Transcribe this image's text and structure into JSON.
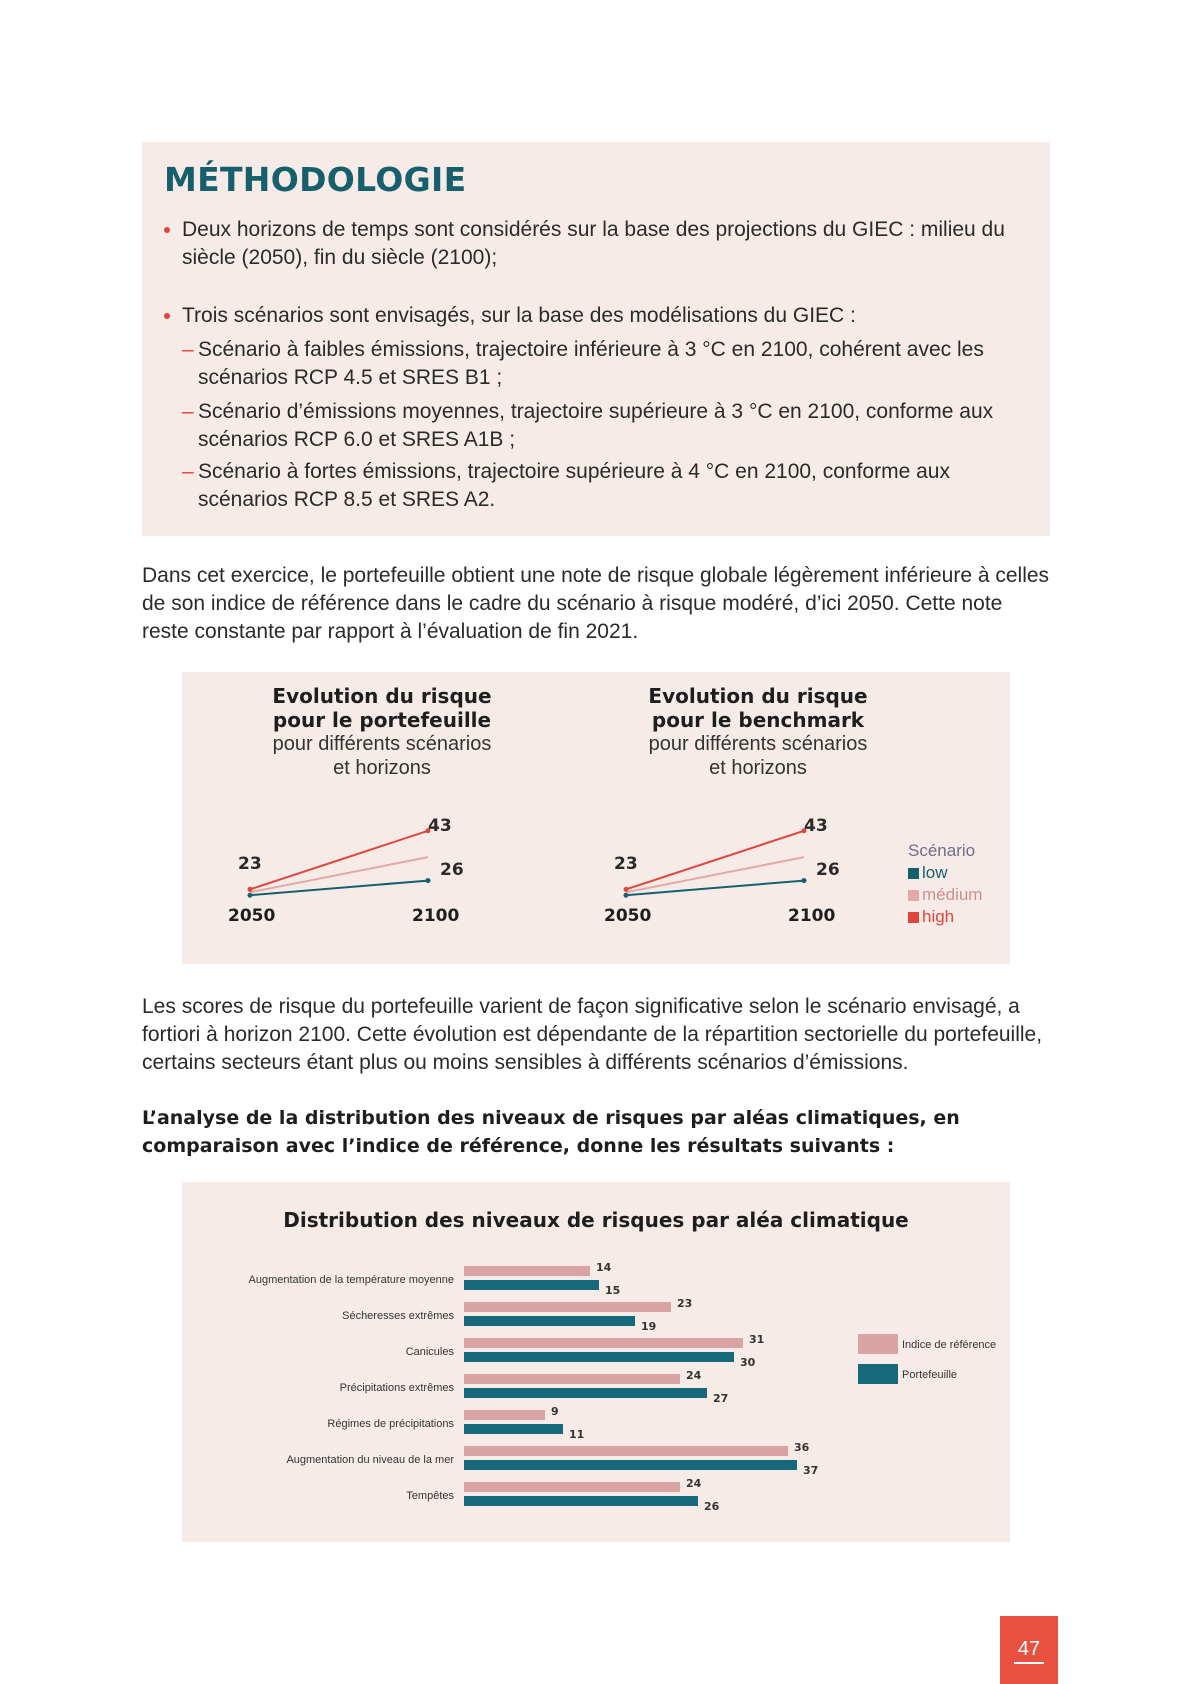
{
  "methodology": {
    "title": "MÉTHODOLOGIE",
    "bullet1": "Deux horizons de temps sont considérés sur la base des projections du GIEC : milieu du siècle (2050), fin du siècle (2100);",
    "bullet2": "Trois scénarios sont envisagés, sur la base des modélisations du GIEC :",
    "sub1": "Scénario à faibles émissions, trajectoire inférieure à 3 °C en 2100, cohérent avec les scénarios RCP 4.5 et SRES B1 ;",
    "sub2": "Scénario d’émissions moyennes, trajectoire supérieure à 3 °C en 2100, conforme aux scénarios RCP 6.0 et SRES A1B ;",
    "sub3": "Scénario à fortes émissions, trajectoire supérieure à 4 °C en 2100, conforme aux scénarios RCP 8.5 et SRES A2."
  },
  "paragraph1": "Dans cet exercice, le portefeuille obtient une note de risque globale légèrement inférieure à celles de son indice de référence dans le cadre du scénario à risque modéré, d’ici 2050. Cette note reste constante par rapport à l’évaluation de fin 2021.",
  "paragraph2": "Les scores de risque du portefeuille varient de façon significative selon le scénario envisagé, a fortiori à horizon 2100. Cette évolution est dépendante de la répartition sectorielle du portefeuille, certains secteurs étant plus ou moins sensibles à différents scénarios d’émissions.",
  "paragraph3": "L’analyse de la distribution des niveaux de risques par aléas climatiques, en comparaison avec l’indice de référence, donne les résultats suivants :",
  "colors": {
    "low": "#165f6c",
    "medium": "#e3a8a8",
    "high": "#e2453e",
    "reference": "#d9a3a3",
    "portfolio": "#16697a",
    "accent": "#e8513f"
  },
  "chart_data": [
    {
      "type": "line",
      "title": "Evolution du risque pour le portefeuille",
      "title_line1": "Evolution du risque",
      "title_line2": "pour le portefeuille",
      "subtitle_line1": "pour différents scénarios",
      "subtitle_line2": "et horizons",
      "x": [
        "2050",
        "2100"
      ],
      "series": [
        {
          "name": "low",
          "values": [
            21,
            26
          ]
        },
        {
          "name": "medium",
          "values": [
            22,
            34
          ]
        },
        {
          "name": "high",
          "values": [
            23,
            43
          ]
        }
      ],
      "labels": {
        "start": "23",
        "high_end": "43",
        "low_end": "26"
      },
      "ylim": [
        18,
        46
      ]
    },
    {
      "type": "line",
      "title": "Evolution du risque pour le benchmark",
      "title_line1": "Evolution du risque",
      "title_line2": "pour le benchmark",
      "subtitle_line1": "pour différents scénarios",
      "subtitle_line2": "et horizons",
      "x": [
        "2050",
        "2100"
      ],
      "series": [
        {
          "name": "low",
          "values": [
            21,
            26
          ]
        },
        {
          "name": "medium",
          "values": [
            22,
            34
          ]
        },
        {
          "name": "high",
          "values": [
            23,
            43
          ]
        }
      ],
      "labels": {
        "start": "23",
        "high_end": "43",
        "low_end": "26"
      },
      "ylim": [
        18,
        46
      ]
    },
    {
      "type": "bar",
      "orientation": "horizontal",
      "title": "Distribution des niveaux de risques par aléa climatique",
      "categories": [
        "Augmentation de la température moyenne",
        "Sécheresses extrêmes",
        "Canicules",
        "Précipitations extrêmes",
        "Régimes de précipitations",
        "Augmentation du niveau de la mer",
        "Tempêtes"
      ],
      "series": [
        {
          "name": "Indice de référence",
          "values": [
            14,
            23,
            31,
            24,
            9,
            36,
            24
          ]
        },
        {
          "name": "Portefeuille",
          "values": [
            15,
            19,
            30,
            27,
            11,
            37,
            26
          ]
        }
      ],
      "xlim": [
        0,
        40
      ]
    }
  ],
  "line_legend": {
    "title": "Scénario",
    "items": [
      "low",
      "médium",
      "high"
    ]
  },
  "page_number": "47"
}
